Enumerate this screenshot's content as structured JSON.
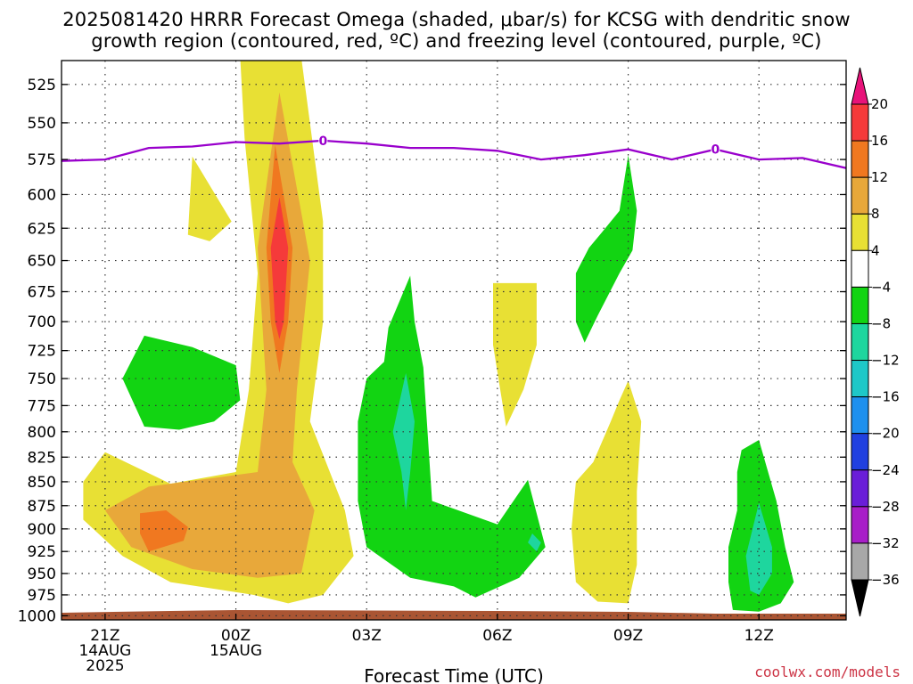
{
  "title_line1": "2025081420 HRRR Forecast Omega (shaded, μbar/s) for KCSG with dendritic snow",
  "title_line2": "growth region (contoured, red, ºC) and freezing level (contoured, purple, ºC)",
  "credit": "coolwx.com/models",
  "chart_data": {
    "type": "contour",
    "xlabel": "Forecast Time (UTC)",
    "x_ticks": [
      {
        "t": 0,
        "lines": [
          "21Z",
          "14AUG",
          "2025"
        ]
      },
      {
        "t": 3,
        "lines": [
          "00Z",
          "15AUG"
        ]
      },
      {
        "t": 6,
        "lines": [
          "03Z"
        ]
      },
      {
        "t": 9,
        "lines": [
          "06Z"
        ]
      },
      {
        "t": 12,
        "lines": [
          "09Z"
        ]
      },
      {
        "t": 15,
        "lines": [
          "12Z"
        ]
      }
    ],
    "xlim_hours_after_21Z": [
      -1,
      17
    ],
    "ylabel": "",
    "y_ticks_mb": [
      525,
      550,
      575,
      600,
      625,
      650,
      675,
      700,
      725,
      750,
      775,
      800,
      825,
      850,
      875,
      900,
      925,
      950,
      975,
      1000
    ],
    "ylim_mb": [
      1005,
      510
    ],
    "y_scale": "log-pressure",
    "grid": "dotted",
    "freezing_level": {
      "color": "#9900cc",
      "contour_label": "0",
      "hours": [
        -1,
        0,
        1,
        2,
        3,
        4,
        5,
        6,
        7,
        8,
        9,
        10,
        11,
        12,
        13,
        14,
        15,
        16,
        17
      ],
      "pressure_mb": [
        576,
        575,
        567,
        566,
        563,
        564,
        562,
        564,
        567,
        567,
        569,
        575,
        572,
        568,
        575,
        568,
        575,
        574,
        581
      ]
    },
    "surface_color": "#aa5533",
    "colorbar": {
      "labels": [
        "20",
        "16",
        "12",
        "8",
        "4",
        "−4",
        "−8",
        "−12",
        "−16",
        "−20",
        "−24",
        "−28",
        "−32",
        "−36"
      ],
      "bins": [
        {
          "range": "above 20",
          "color": "#e8137a"
        },
        {
          "range": "16 to 20",
          "color": "#f53a3a"
        },
        {
          "range": "12 to 16",
          "color": "#f07820"
        },
        {
          "range": "8 to 12",
          "color": "#e8a83a"
        },
        {
          "range": "4 to 8",
          "color": "#e8e034"
        },
        {
          "range": "-4 to 4",
          "color": "#ffffff"
        },
        {
          "range": "-8 to -4",
          "color": "#12d412"
        },
        {
          "range": "-12 to -8",
          "color": "#1ed69e"
        },
        {
          "range": "-16 to -12",
          "color": "#1ec8c8"
        },
        {
          "range": "-20 to -16",
          "color": "#1e90ee"
        },
        {
          "range": "-24 to -20",
          "color": "#2040e0"
        },
        {
          "range": "-28 to -24",
          "color": "#6a1ed8"
        },
        {
          "range": "-32 to -28",
          "color": "#a81ec8"
        },
        {
          "range": "-36 to -32",
          "color": "#a8a8a8"
        },
        {
          "range": "below -36",
          "color": "#000000"
        }
      ]
    },
    "shaded_regions": [
      {
        "name": "upper-yellow-column",
        "value_bin": "4 to 8",
        "color": "#e8e034",
        "points": [
          [
            3.1,
            508
          ],
          [
            4.5,
            508
          ],
          [
            5.0,
            620
          ],
          [
            5.0,
            700
          ],
          [
            4.7,
            790
          ],
          [
            5.5,
            880
          ],
          [
            5.7,
            930
          ],
          [
            5.0,
            975
          ],
          [
            4.2,
            985
          ],
          [
            3.4,
            975
          ],
          [
            1.5,
            960
          ],
          [
            0.4,
            930
          ],
          [
            -0.5,
            890
          ],
          [
            -0.5,
            850
          ],
          [
            0,
            820
          ],
          [
            1.5,
            852
          ],
          [
            3.0,
            840
          ],
          [
            3.3,
            760
          ],
          [
            3.5,
            660
          ],
          [
            3.2,
            560
          ]
        ]
      },
      {
        "name": "upper-orange-column",
        "value_bin": "8 to 12",
        "color": "#e8a83a",
        "points": [
          [
            4.0,
            530
          ],
          [
            4.7,
            650
          ],
          [
            4.4,
            760
          ],
          [
            4.3,
            830
          ],
          [
            4.8,
            880
          ],
          [
            4.5,
            950
          ],
          [
            3.5,
            955
          ],
          [
            2.0,
            945
          ],
          [
            0.6,
            920
          ],
          [
            0.0,
            880
          ],
          [
            1.0,
            855
          ],
          [
            3.5,
            840
          ],
          [
            3.7,
            760
          ],
          [
            3.5,
            640
          ]
        ]
      },
      {
        "name": "upper-dark-orange",
        "value_bin": "12 to 16",
        "color": "#f07820",
        "points": [
          [
            3.9,
            565
          ],
          [
            4.3,
            640
          ],
          [
            4.2,
            700
          ],
          [
            4.0,
            745
          ],
          [
            3.8,
            700
          ],
          [
            3.7,
            640
          ]
        ]
      },
      {
        "name": "lower-dark-orange",
        "value_bin": "12 to 16",
        "color": "#f07820",
        "points": [
          [
            0.8,
            883
          ],
          [
            1.4,
            880
          ],
          [
            1.9,
            898
          ],
          [
            1.8,
            913
          ],
          [
            1.0,
            925
          ],
          [
            0.8,
            905
          ]
        ]
      },
      {
        "name": "red-core",
        "value_bin": "16 to 20",
        "color": "#f53a3a",
        "points": [
          [
            4.0,
            602
          ],
          [
            4.2,
            640
          ],
          [
            4.1,
            700
          ],
          [
            4.0,
            715
          ],
          [
            3.9,
            700
          ],
          [
            3.8,
            640
          ]
        ]
      },
      {
        "name": "small-yellow-patch",
        "value_bin": "4 to 8",
        "color": "#e8e034",
        "points": [
          [
            2.0,
            573
          ],
          [
            2.9,
            620
          ],
          [
            2.4,
            635
          ],
          [
            1.9,
            630
          ]
        ]
      },
      {
        "name": "green-left",
        "value_bin": "-8 to -4",
        "color": "#12d412",
        "points": [
          [
            0.9,
            712
          ],
          [
            2.0,
            722
          ],
          [
            3.0,
            738
          ],
          [
            3.1,
            770
          ],
          [
            2.5,
            790
          ],
          [
            1.7,
            798
          ],
          [
            0.9,
            795
          ],
          [
            0.4,
            750
          ]
        ]
      },
      {
        "name": "green-center",
        "value_bin": "-8 to -4",
        "color": "#12d412",
        "points": [
          [
            7.0,
            662
          ],
          [
            6.5,
            705
          ],
          [
            6.4,
            735
          ],
          [
            6.0,
            750
          ],
          [
            5.8,
            790
          ],
          [
            5.8,
            870
          ],
          [
            6.0,
            920
          ],
          [
            7.0,
            955
          ],
          [
            8.0,
            965
          ],
          [
            8.5,
            978
          ],
          [
            9.5,
            955
          ],
          [
            10.1,
            920
          ],
          [
            9.7,
            848
          ],
          [
            9.0,
            895
          ],
          [
            7.5,
            870
          ],
          [
            7.3,
            740
          ],
          [
            7.1,
            700
          ]
        ]
      },
      {
        "name": "teal-center-patch",
        "value_bin": "-12 to -8",
        "color": "#1ed69e",
        "points": [
          [
            6.9,
            745
          ],
          [
            7.1,
            790
          ],
          [
            7.0,
            840
          ],
          [
            6.9,
            880
          ],
          [
            6.8,
            840
          ],
          [
            6.6,
            800
          ]
        ]
      },
      {
        "name": "teal-small-patch",
        "value_bin": "-12 to -8",
        "color": "#1ed69e",
        "points": [
          [
            9.8,
            905
          ],
          [
            10.0,
            915
          ],
          [
            9.9,
            925
          ],
          [
            9.7,
            915
          ]
        ]
      },
      {
        "name": "yellow-center",
        "value_bin": "4 to 8",
        "color": "#e8e034",
        "points": [
          [
            8.9,
            668
          ],
          [
            9.9,
            668
          ],
          [
            9.9,
            720
          ],
          [
            9.6,
            760
          ],
          [
            9.2,
            795
          ],
          [
            8.9,
            720
          ]
        ]
      },
      {
        "name": "green-upper-right",
        "value_bin": "-8 to -4",
        "color": "#12d412",
        "points": [
          [
            12.0,
            572
          ],
          [
            12.2,
            612
          ],
          [
            12.1,
            642
          ],
          [
            11.8,
            660
          ],
          [
            11.3,
            695
          ],
          [
            11.0,
            718
          ],
          [
            10.8,
            700
          ],
          [
            10.8,
            660
          ],
          [
            11.1,
            640
          ],
          [
            11.4,
            628
          ],
          [
            11.8,
            612
          ]
        ]
      },
      {
        "name": "yellow-right",
        "value_bin": "4 to 8",
        "color": "#e8e034",
        "points": [
          [
            12.0,
            752
          ],
          [
            12.3,
            790
          ],
          [
            12.2,
            860
          ],
          [
            12.2,
            940
          ],
          [
            12.0,
            985
          ],
          [
            11.3,
            983
          ],
          [
            10.8,
            960
          ],
          [
            10.7,
            900
          ],
          [
            10.8,
            850
          ],
          [
            11.2,
            830
          ],
          [
            11.6,
            790
          ],
          [
            11.8,
            770
          ]
        ]
      },
      {
        "name": "green-right",
        "value_bin": "-8 to -4",
        "color": "#12d412",
        "points": [
          [
            15.0,
            808
          ],
          [
            15.4,
            870
          ],
          [
            15.6,
            920
          ],
          [
            15.8,
            960
          ],
          [
            15.5,
            985
          ],
          [
            15.0,
            995
          ],
          [
            14.4,
            993
          ],
          [
            14.3,
            960
          ],
          [
            14.3,
            920
          ],
          [
            14.5,
            880
          ],
          [
            14.5,
            840
          ],
          [
            14.6,
            818
          ]
        ]
      },
      {
        "name": "teal-right",
        "value_bin": "-12 to -8",
        "color": "#1ed69e",
        "points": [
          [
            15.0,
            872
          ],
          [
            15.3,
            920
          ],
          [
            15.3,
            950
          ],
          [
            15.0,
            975
          ],
          [
            14.8,
            970
          ],
          [
            14.7,
            930
          ]
        ]
      }
    ]
  }
}
